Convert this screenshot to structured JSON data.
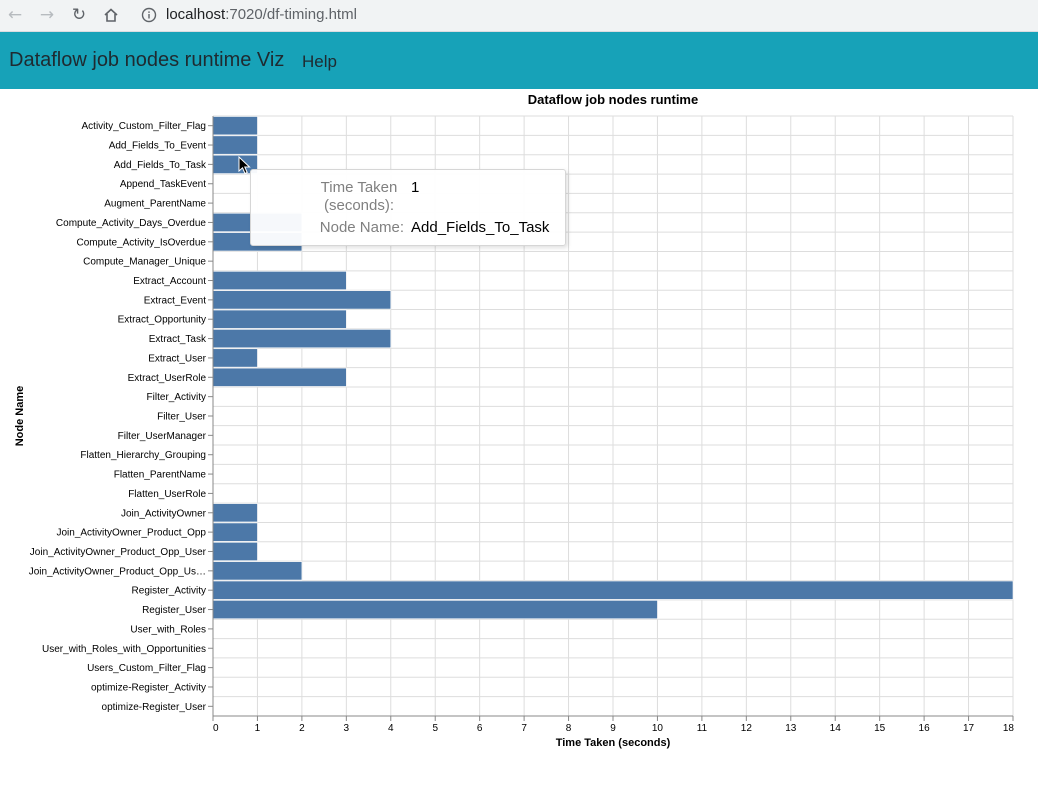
{
  "browser": {
    "url_host": "localhost",
    "url_path": ":7020/df-timing.html"
  },
  "app": {
    "title": "Dataflow job nodes runtime Viz",
    "help_label": "Help"
  },
  "chart_data": {
    "type": "bar",
    "orientation": "horizontal",
    "title": "Dataflow  job nodes runtime",
    "xlabel": "Time Taken (seconds)",
    "ylabel": "Node Name",
    "xlim": [
      0,
      18
    ],
    "xticks": [
      0,
      1,
      2,
      3,
      4,
      5,
      6,
      7,
      8,
      9,
      10,
      11,
      12,
      13,
      14,
      15,
      16,
      17,
      18
    ],
    "grid": true,
    "bar_color": "#4c78a8",
    "categories": [
      "Activity_Custom_Filter_Flag",
      "Add_Fields_To_Event",
      "Add_Fields_To_Task",
      "Append_TaskEvent",
      "Augment_ParentName",
      "Compute_Activity_Days_Overdue",
      "Compute_Activity_IsOverdue",
      "Compute_Manager_Unique",
      "Extract_Account",
      "Extract_Event",
      "Extract_Opportunity",
      "Extract_Task",
      "Extract_User",
      "Extract_UserRole",
      "Filter_Activity",
      "Filter_User",
      "Filter_UserManager",
      "Flatten_Hierarchy_Grouping",
      "Flatten_ParentName",
      "Flatten_UserRole",
      "Join_ActivityOwner",
      "Join_ActivityOwner_Product_Opp",
      "Join_ActivityOwner_Product_Opp_User",
      "Join_ActivityOwner_Product_Opp_Us…",
      "Register_Activity",
      "Register_User",
      "User_with_Roles",
      "User_with_Roles_with_Opportunities",
      "Users_Custom_Filter_Flag",
      "optimize-Register_Activity",
      "optimize-Register_User"
    ],
    "values": [
      1,
      1,
      1,
      0,
      0,
      2,
      2,
      0,
      3,
      4,
      3,
      4,
      1,
      3,
      0,
      0,
      0,
      0,
      0,
      0,
      1,
      1,
      1,
      2,
      18,
      10,
      0,
      0,
      0,
      0,
      0
    ]
  },
  "tooltip": {
    "key1": "Time Taken (seconds):",
    "val1": "1",
    "key2": "Node Name:",
    "val2": "Add_Fields_To_Task"
  }
}
